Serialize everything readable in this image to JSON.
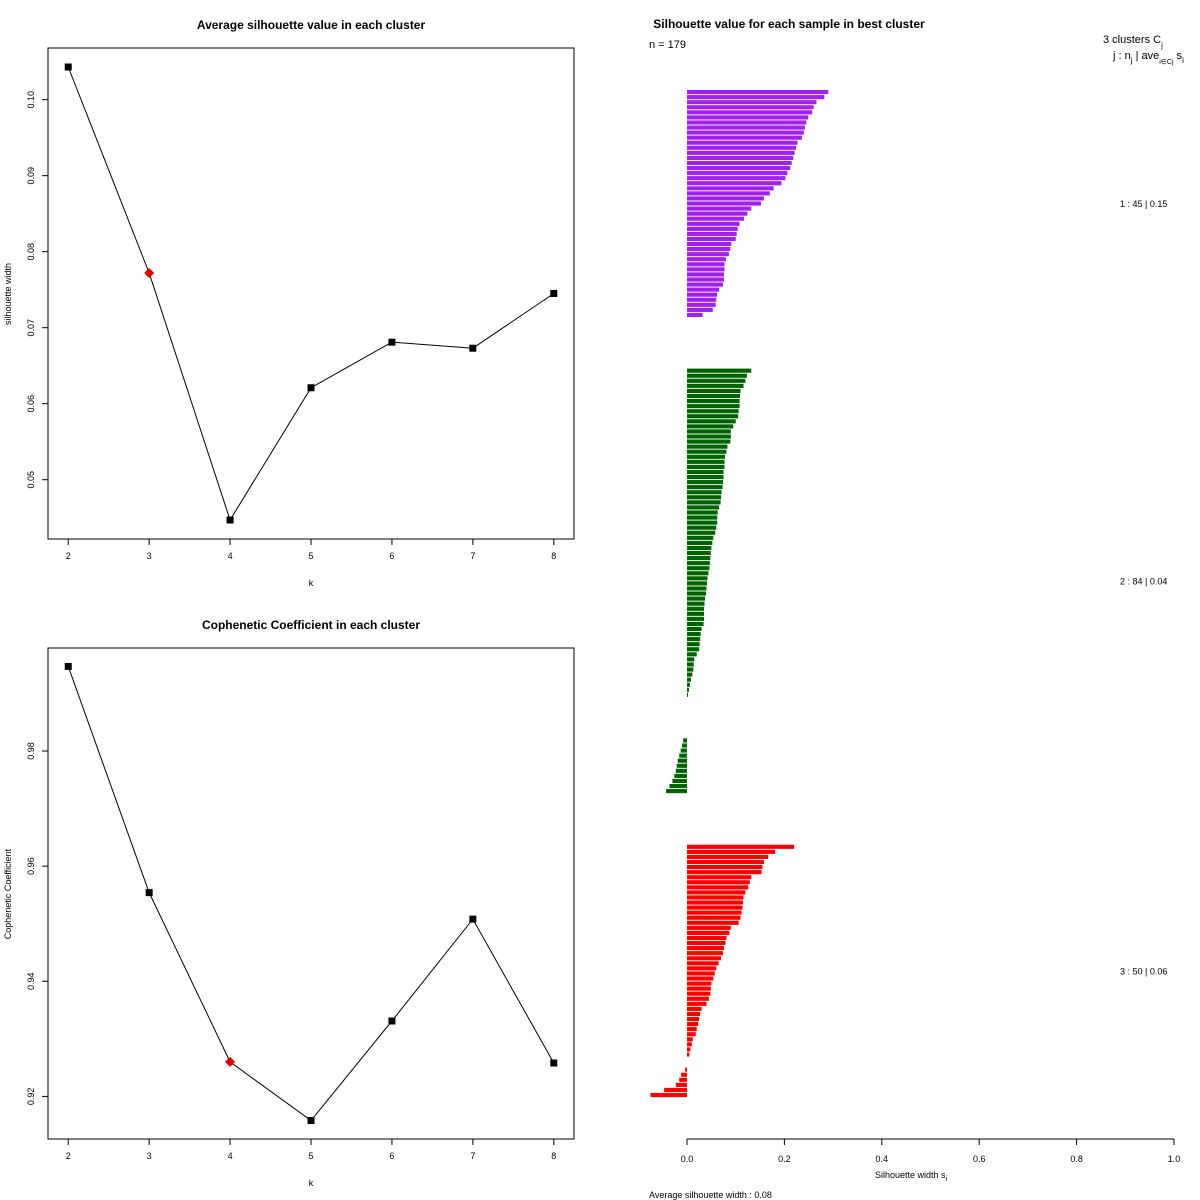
{
  "chart_data": [
    {
      "type": "line",
      "title": "Average silhouette value in each cluster",
      "xlabel": "k",
      "ylabel": "silhouette width",
      "x": [
        2,
        3,
        4,
        5,
        6,
        7,
        8
      ],
      "values": [
        0.1043,
        0.0772,
        0.0447,
        0.0621,
        0.0681,
        0.0673,
        0.0745
      ],
      "highlight_index": 1,
      "highlight_color": "#e60000",
      "xlim": [
        1.75,
        8.25
      ],
      "ylim": [
        0.0422,
        0.1068
      ],
      "xticks": [
        "2",
        "3",
        "4",
        "5",
        "6",
        "7",
        "8"
      ],
      "yticks": [
        0.05,
        0.06,
        0.07,
        0.08,
        0.09,
        0.1
      ],
      "ytick_labels": [
        "0.05",
        "0.06",
        "0.07",
        "0.08",
        "0.09",
        "0.10"
      ]
    },
    {
      "type": "line",
      "title": "Cophenetic Coefficient in each cluster",
      "xlabel": "k",
      "ylabel": "Cophenetic Coefficient",
      "x": [
        2,
        3,
        4,
        5,
        6,
        7,
        8
      ],
      "values": [
        0.9947,
        0.9554,
        0.926,
        0.9158,
        0.9331,
        0.9508,
        0.9258
      ],
      "highlight_index": 2,
      "highlight_color": "#e60000",
      "xlim": [
        1.75,
        8.25
      ],
      "ylim": [
        0.9126,
        0.9979
      ],
      "xticks": [
        "2",
        "3",
        "4",
        "5",
        "6",
        "7",
        "8"
      ],
      "yticks": [
        0.92,
        0.94,
        0.96,
        0.98
      ],
      "ytick_labels": [
        "0.92",
        "0.94",
        "0.96",
        "0.98"
      ]
    },
    {
      "type": "bar",
      "orientation": "horizontal",
      "title": "Silhouette value for each sample in best cluster",
      "n_label": "n = 179",
      "header_line1": "3  clusters  C",
      "header_sub1": "j",
      "header_line2": "j :  n",
      "header_sub2": "j",
      "header_line2b": " | ave",
      "header_sub3": "i∈Cj",
      "header_line2c": " s",
      "header_sub4": "i",
      "xlabel": "Silhouette width s",
      "xlabel_sub": "i",
      "footer": "Average silhouette width :  0.08",
      "xlim": [
        0.0,
        1.0
      ],
      "xticks": [
        0.0,
        0.2,
        0.4,
        0.6,
        0.8,
        1.0
      ],
      "xtick_labels": [
        "0.0",
        "0.2",
        "0.4",
        "0.6",
        "0.8",
        "1.0"
      ],
      "clusters": [
        {
          "label": "1 :  45  |  0.15",
          "color": "#a020f0",
          "values": [
            0.29,
            0.282,
            0.266,
            0.26,
            0.257,
            0.249,
            0.245,
            0.242,
            0.24,
            0.236,
            0.227,
            0.224,
            0.221,
            0.218,
            0.215,
            0.212,
            0.206,
            0.202,
            0.194,
            0.178,
            0.17,
            0.158,
            0.152,
            0.132,
            0.124,
            0.117,
            0.108,
            0.104,
            0.102,
            0.1,
            0.091,
            0.089,
            0.086,
            0.08,
            0.077,
            0.077,
            0.076,
            0.076,
            0.074,
            0.066,
            0.062,
            0.06,
            0.059,
            0.053,
            0.032
          ]
        },
        {
          "label": "2 :  84  |  0.04",
          "color": "#006400",
          "values": [
            0.132,
            0.123,
            0.12,
            0.116,
            0.11,
            0.109,
            0.108,
            0.108,
            0.106,
            0.105,
            0.1,
            0.095,
            0.09,
            0.09,
            0.089,
            0.083,
            0.081,
            0.078,
            0.077,
            0.077,
            0.075,
            0.075,
            0.074,
            0.073,
            0.071,
            0.07,
            0.069,
            0.066,
            0.063,
            0.062,
            0.062,
            0.06,
            0.058,
            0.054,
            0.052,
            0.05,
            0.049,
            0.048,
            0.047,
            0.046,
            0.044,
            0.042,
            0.041,
            0.04,
            0.039,
            0.037,
            0.036,
            0.035,
            0.035,
            0.035,
            0.034,
            0.03,
            0.028,
            0.027,
            0.026,
            0.025,
            0.02,
            0.015,
            0.014,
            0.013,
            0.011,
            0.008,
            0.006,
            0.004,
            0.002,
            0.0,
            0.0,
            0.0,
            0.0,
            0.0,
            0.0,
            0.0,
            0.0,
            -0.008,
            -0.01,
            -0.013,
            -0.016,
            -0.019,
            -0.021,
            -0.023,
            -0.026,
            -0.03,
            -0.036,
            -0.043
          ]
        },
        {
          "label": "3 :  50  |  0.06",
          "color": "#ff0000",
          "values": [
            0.22,
            0.181,
            0.167,
            0.158,
            0.155,
            0.153,
            0.132,
            0.129,
            0.126,
            0.12,
            0.116,
            0.115,
            0.114,
            0.112,
            0.11,
            0.106,
            0.09,
            0.087,
            0.081,
            0.079,
            0.076,
            0.074,
            0.07,
            0.065,
            0.06,
            0.057,
            0.054,
            0.05,
            0.049,
            0.048,
            0.045,
            0.04,
            0.03,
            0.027,
            0.025,
            0.023,
            0.02,
            0.018,
            0.012,
            0.01,
            0.007,
            0.005,
            0.0,
            0.0,
            -0.004,
            -0.012,
            -0.016,
            -0.023,
            -0.047,
            -0.075
          ]
        }
      ]
    }
  ]
}
